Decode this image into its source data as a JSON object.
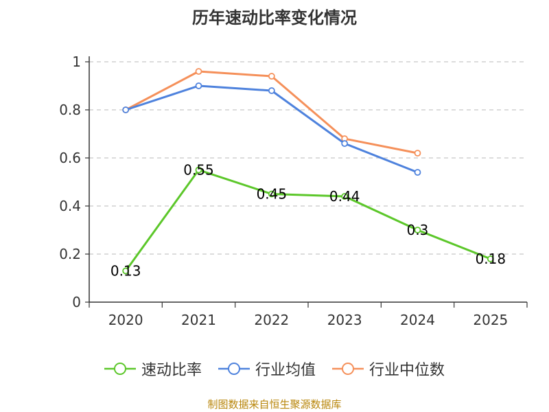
{
  "chart_data": {
    "type": "line",
    "title": "历年速动比率变化情况",
    "categories": [
      "2020",
      "2021",
      "2022",
      "2023",
      "2024",
      "2025"
    ],
    "ylim": [
      0,
      1
    ],
    "yticks": [
      {
        "value": 0,
        "label": "0"
      },
      {
        "value": 0.2,
        "label": "0.2"
      },
      {
        "value": 0.4,
        "label": "0.4"
      },
      {
        "value": 0.6,
        "label": "0.6"
      },
      {
        "value": 0.8,
        "label": "0.8"
      },
      {
        "value": 1,
        "label": "1"
      }
    ],
    "grid": true,
    "legend_position": "bottom",
    "series": [
      {
        "name": "速动比率",
        "color": "#5cc72a",
        "values": [
          0.13,
          0.55,
          0.45,
          0.44,
          0.3,
          0.18
        ],
        "data_labels": [
          "0.13",
          "0.55",
          "0.45",
          "0.44",
          "0.3",
          "0.18"
        ]
      },
      {
        "name": "行业均值",
        "color": "#4e82dd",
        "values": [
          0.8,
          0.9,
          0.88,
          0.66,
          0.54,
          null
        ]
      },
      {
        "name": "行业中位数",
        "color": "#f5905a",
        "values": [
          0.8,
          0.96,
          0.94,
          0.68,
          0.62,
          null
        ]
      }
    ]
  },
  "footer": {
    "source": "制图数据来自恒生聚源数据库"
  }
}
